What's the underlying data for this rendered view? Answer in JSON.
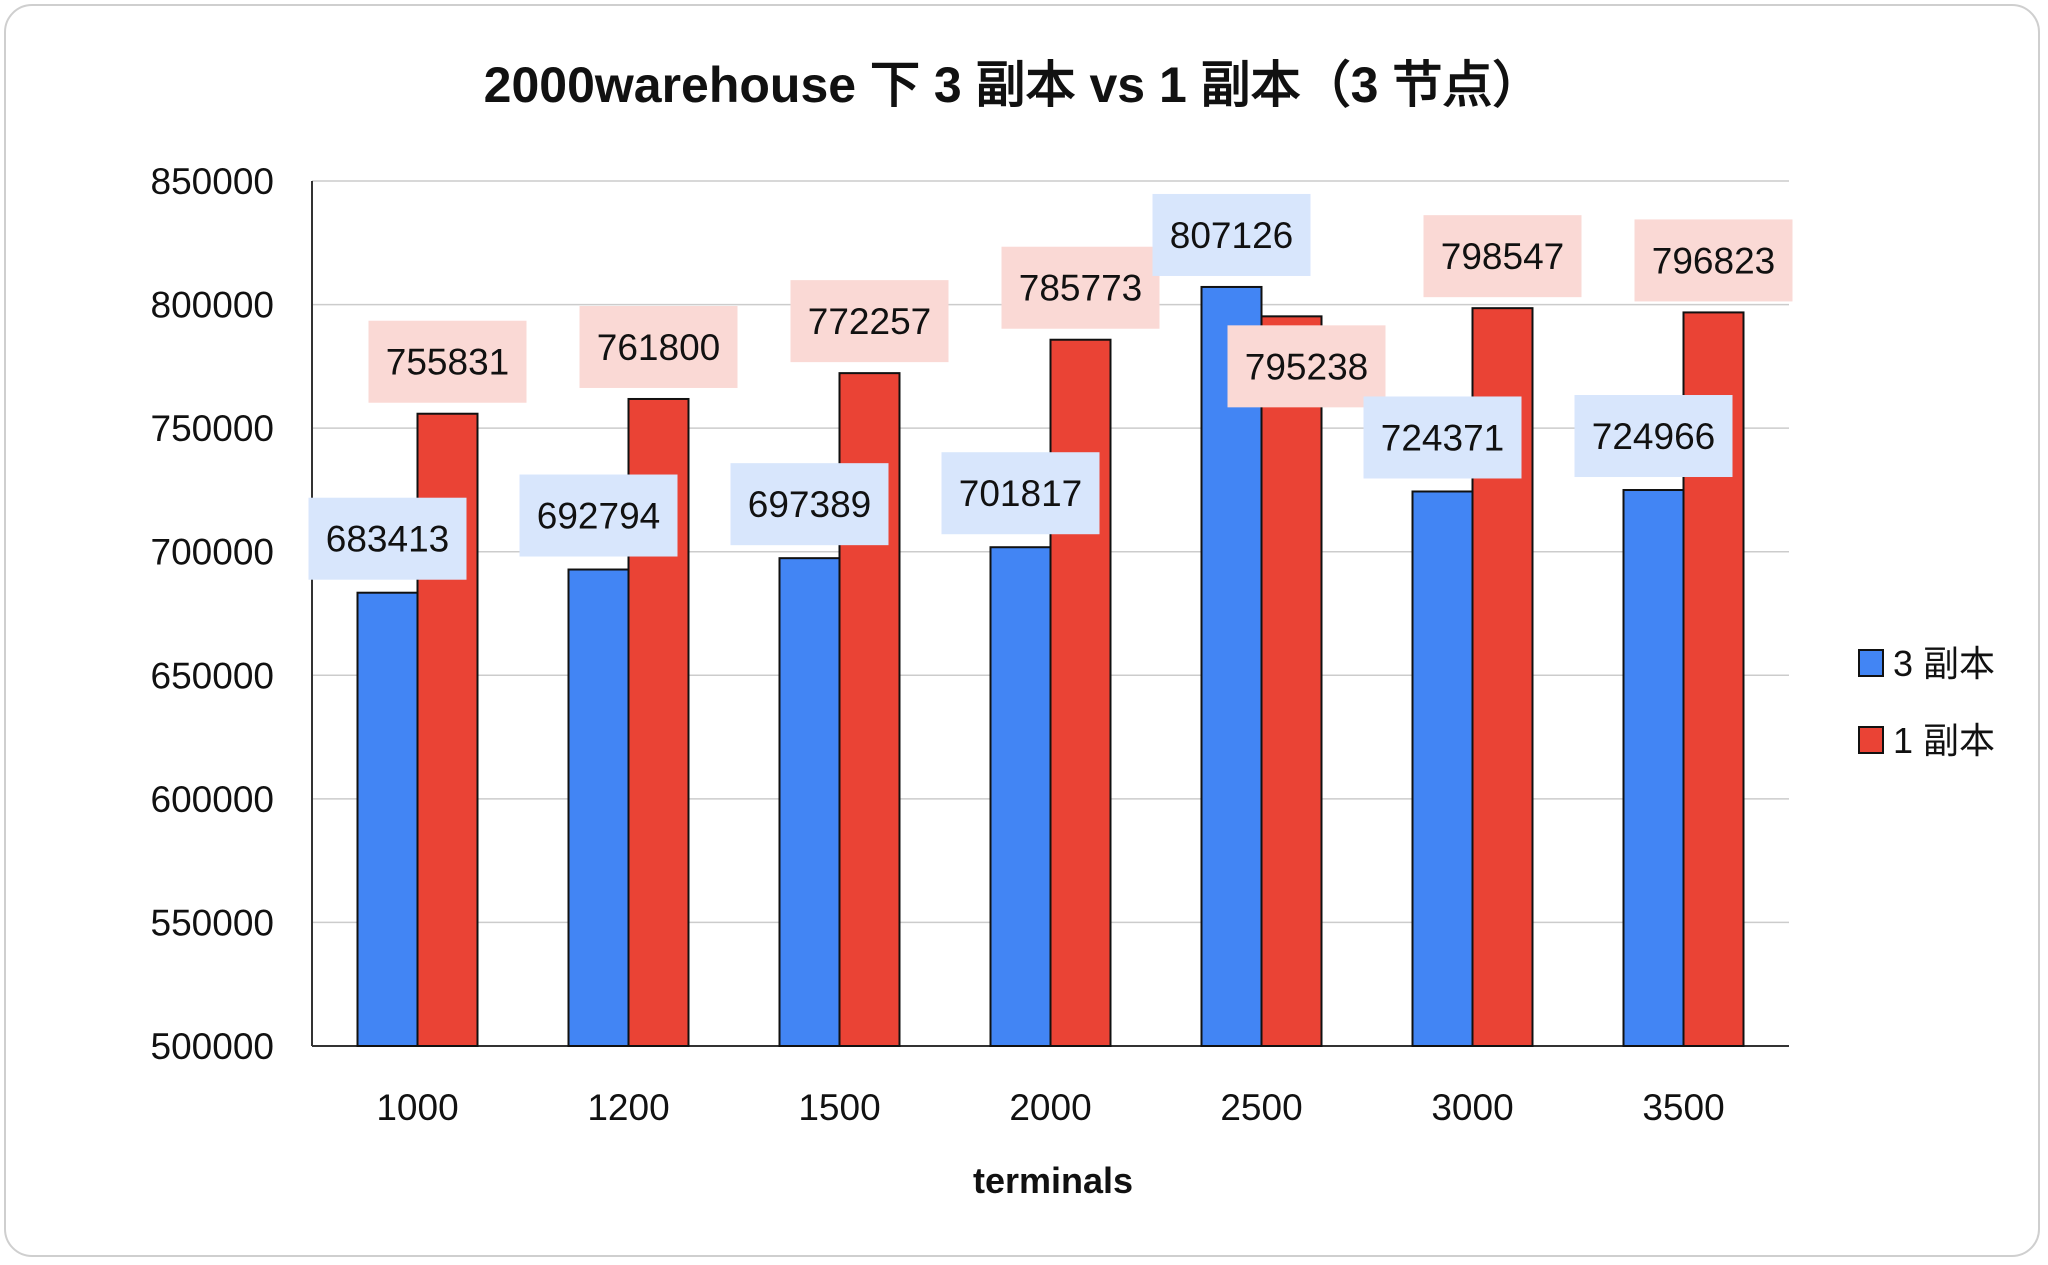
{
  "chart_data": {
    "type": "bar",
    "title": "2000warehouse 下 3 副本 vs 1 副本（3 节点）",
    "xlabel": "terminals",
    "ylabel": "",
    "categories": [
      "1000",
      "1200",
      "1500",
      "2000",
      "2500",
      "3000",
      "3500"
    ],
    "ylim": [
      500000,
      850000
    ],
    "yticks": [
      500000,
      550000,
      600000,
      650000,
      700000,
      750000,
      800000,
      850000
    ],
    "series": [
      {
        "name": "3 副本",
        "color": "#4285f4",
        "label_bg": "#d8e6fc",
        "values": [
          683413,
          692794,
          697389,
          701817,
          807126,
          724371,
          724966
        ]
      },
      {
        "name": "1 副本",
        "color": "#ea4335",
        "label_bg": "#fad9d5",
        "values": [
          755831,
          761800,
          772257,
          785773,
          795238,
          798547,
          796823
        ]
      }
    ],
    "grid": true,
    "legend": "right",
    "data_labels": true
  }
}
